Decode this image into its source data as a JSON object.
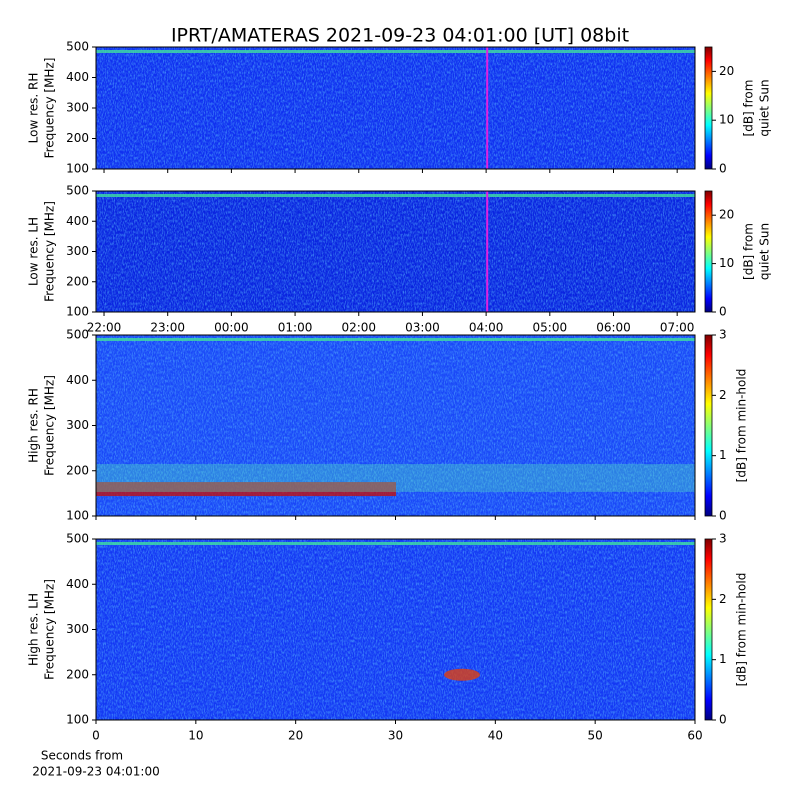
{
  "chart_data": [
    {
      "type": "heatmap",
      "title": "IPRT/AMATERAS 2021-09-23 04:01:00 [UT]   08bit",
      "ylabel": [
        "Low res. RH",
        "Frequency [MHz]"
      ],
      "ylim": [
        100,
        500
      ],
      "yticks": [
        100,
        200,
        300,
        400,
        500
      ],
      "xlim": [
        21.874,
        31.28
      ],
      "marker_x": 28.0167,
      "marker_color": "#e020e0",
      "colormap": "jet",
      "colorbar": {
        "label": [
          "[dB] from",
          "quiet Sun"
        ],
        "lim": [
          0,
          25
        ],
        "ticks": [
          0,
          10,
          20
        ]
      }
    },
    {
      "type": "heatmap",
      "ylabel": [
        "Low res. LH",
        "Frequency [MHz]"
      ],
      "ylim": [
        100,
        500
      ],
      "yticks": [
        100,
        200,
        300,
        400,
        500
      ],
      "xlim": [
        21.874,
        31.28
      ],
      "marker_x": 28.0167,
      "marker_color": "#e020e0",
      "xticks": [
        {
          "value": 22,
          "label": "22:00"
        },
        {
          "value": 23,
          "label": "23:00"
        },
        {
          "value": 24,
          "label": "00:00"
        },
        {
          "value": 25,
          "label": "01:00"
        },
        {
          "value": 26,
          "label": "02:00"
        },
        {
          "value": 27,
          "label": "03:00"
        },
        {
          "value": 28,
          "label": "04:00"
        },
        {
          "value": 29,
          "label": "05:00"
        },
        {
          "value": 30,
          "label": "06:00"
        },
        {
          "value": 31,
          "label": "07:00"
        }
      ],
      "colormap": "jet",
      "colorbar": {
        "label": [
          "[dB] from",
          "quiet Sun"
        ],
        "lim": [
          0,
          25
        ],
        "ticks": [
          0,
          10,
          20
        ]
      }
    },
    {
      "type": "heatmap",
      "ylabel": [
        "High res. RH",
        "Frequency [MHz]"
      ],
      "ylim": [
        100,
        500
      ],
      "yticks": [
        100,
        200,
        300,
        400,
        500
      ],
      "xlim": [
        0,
        60
      ],
      "colormap": "jet",
      "colorbar": {
        "label": [
          "[dB] from min-hold"
        ],
        "lim": [
          0,
          3
        ],
        "ticks": [
          0,
          1,
          2,
          3
        ]
      }
    },
    {
      "type": "heatmap",
      "ylabel": [
        "High res. LH",
        "Frequency [MHz]"
      ],
      "ylim": [
        100,
        500
      ],
      "yticks": [
        100,
        200,
        300,
        400,
        500
      ],
      "xlim": [
        0,
        60
      ],
      "xticks": [
        0,
        10,
        20,
        30,
        40,
        50,
        60
      ],
      "xlabel": [
        "Seconds from",
        "2021-09-23 04:01:00"
      ],
      "colormap": "jet",
      "colorbar": {
        "label": [
          "[dB] from min-hold"
        ],
        "lim": [
          0,
          3
        ],
        "ticks": [
          0,
          1,
          2,
          3
        ]
      }
    }
  ]
}
